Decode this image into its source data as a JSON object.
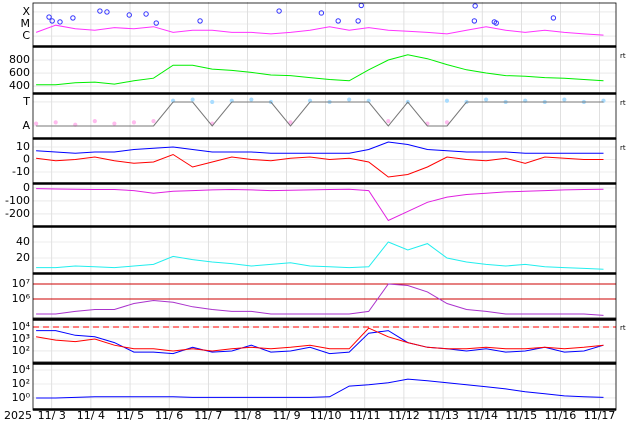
{
  "x_axis": {
    "year": "2025",
    "xlim": [
      2.52,
      17.42
    ],
    "xticks": [
      {
        "value": 3,
        "label": "11/ 3"
      },
      {
        "value": 4,
        "label": "11/ 4"
      },
      {
        "value": 5,
        "label": "11/ 5"
      },
      {
        "value": 6,
        "label": "11/ 6"
      },
      {
        "value": 7,
        "label": "11/ 7"
      },
      {
        "value": 8,
        "label": "11/ 8"
      },
      {
        "value": 9,
        "label": "11/ 9"
      },
      {
        "value": 10,
        "label": "11/10"
      },
      {
        "value": 11,
        "label": "11/11"
      },
      {
        "value": 12,
        "label": "11/12"
      },
      {
        "value": 13,
        "label": "11/13"
      },
      {
        "value": 14,
        "label": "11/14"
      },
      {
        "value": 15,
        "label": "11/15"
      },
      {
        "value": 16,
        "label": "11/16"
      },
      {
        "value": 17,
        "label": "11/17"
      }
    ]
  },
  "chart_data": [
    {
      "type": "line",
      "log": true,
      "ylim": [
        1.8e-07,
        0.00038
      ],
      "yticks": [
        {
          "value": 0.0001,
          "label": "X"
        },
        {
          "value": 1e-05,
          "label": "M"
        },
        {
          "value": 1e-06,
          "label": "C"
        }
      ],
      "x": [
        2.6,
        3.1,
        3.6,
        4.1,
        4.6,
        5.1,
        5.6,
        6.1,
        6.6,
        7.1,
        7.6,
        8.1,
        8.6,
        9.1,
        9.6,
        10.1,
        10.6,
        11.1,
        11.6,
        12.1,
        12.6,
        13.1,
        13.6,
        14.1,
        14.6,
        15.1,
        15.6,
        16.1,
        16.6,
        17.1
      ],
      "series": [
        {
          "color": "#ff33ff",
          "values": [
            2e-06,
            8e-06,
            4e-06,
            3e-06,
            5e-06,
            4e-06,
            6e-06,
            2e-06,
            3e-06,
            3e-06,
            2e-06,
            2e-06,
            1.5e-06,
            2e-06,
            3e-06,
            6e-06,
            3e-06,
            5e-06,
            3e-06,
            2.5e-06,
            2e-06,
            1.5e-06,
            3e-06,
            6e-06,
            3e-06,
            2e-06,
            3e-06,
            2e-06,
            1.5e-06,
            1.2e-06
          ]
        },
        {
          "color": "#3333ff",
          "mode": "markers",
          "x": [
            2.93,
            3.01,
            3.21,
            3.54,
            4.23,
            4.41,
            4.98,
            5.41,
            5.67,
            6.79,
            8.81,
            9.89,
            10.32,
            10.83,
            10.91,
            13.82,
            13.8,
            14.31,
            14.36,
            15.82
          ],
          "values": [
            3.8e-05,
            1.8e-05,
            1.5e-05,
            3.2e-05,
            0.00012,
            0.0001,
            5.6e-05,
            6.8e-05,
            1.2e-05,
            1.8e-05,
            0.00012,
            8.3e-05,
            1.8e-05,
            1.8e-05,
            0.00035,
            0.00032,
            1.8e-05,
            1.5e-05,
            1.2e-05,
            3.2e-05
          ]
        }
      ]
    },
    {
      "type": "line",
      "ylim": [
        308,
        985
      ],
      "yticks": [
        800,
        600,
        400
      ],
      "note": "rt",
      "x": [
        2.6,
        3.1,
        3.6,
        4.1,
        4.6,
        5.1,
        5.6,
        6.1,
        6.6,
        7.1,
        7.6,
        8.1,
        8.6,
        9.1,
        9.6,
        10.1,
        10.6,
        11.1,
        11.6,
        12.1,
        12.6,
        13.1,
        13.6,
        14.1,
        14.6,
        15.1,
        15.6,
        16.1,
        16.6,
        17.1
      ],
      "series": [
        {
          "color": "#00ee00",
          "values": [
            420,
            420,
            450,
            460,
            430,
            480,
            520,
            720,
            720,
            660,
            640,
            610,
            570,
            560,
            530,
            500,
            480,
            650,
            800,
            880,
            820,
            730,
            650,
            600,
            560,
            550,
            530,
            520,
            500,
            480
          ]
        }
      ]
    },
    {
      "type": "line",
      "ylim": [
        -0.46,
        1.29
      ],
      "yticks": [
        {
          "value": 1,
          "label": "T"
        },
        {
          "value": 0,
          "label": "A"
        }
      ],
      "note": "rt",
      "x": [
        2.6,
        3.1,
        3.6,
        4.1,
        4.6,
        5.1,
        5.6,
        6.1,
        6.6,
        7.1,
        7.6,
        8.1,
        8.6,
        9.1,
        9.6,
        10.1,
        10.6,
        11.1,
        11.6,
        12.1,
        12.6,
        13.1,
        13.6,
        14.1,
        14.6,
        15.1,
        15.6,
        16.1,
        16.6,
        17.1
      ],
      "series": [
        {
          "color": "#aaddff",
          "mode": "markers",
          "values": [
            null,
            null,
            null,
            null,
            null,
            null,
            null,
            1.05,
            1.1,
            1.0,
            1.05,
            1.1,
            1.0,
            null,
            1.05,
            1.0,
            1.1,
            1.05,
            null,
            1.0,
            null,
            1.05,
            1.0,
            1.1,
            1.0,
            1.05,
            1.0,
            1.1,
            1.0,
            1.05
          ]
        },
        {
          "color": "#ffbbee",
          "mode": "markers",
          "values": [
            0.1,
            0.15,
            0.05,
            0.2,
            0.1,
            0.15,
            0.2,
            null,
            null,
            0.1,
            null,
            null,
            null,
            0.15,
            null,
            null,
            null,
            null,
            0.2,
            null,
            0.1,
            0.15,
            null,
            null,
            null,
            null,
            null,
            null,
            null,
            null
          ]
        },
        {
          "color": "#777777",
          "values": [
            0,
            0,
            0,
            0,
            0,
            0,
            0,
            1,
            1,
            0,
            1,
            1,
            1,
            0,
            1,
            1,
            1,
            1,
            0,
            1,
            0,
            0,
            1,
            1,
            1,
            1,
            1,
            1,
            1,
            1
          ]
        }
      ]
    },
    {
      "type": "line",
      "ylim": [
        -18,
        15.6
      ],
      "yticks": [
        10,
        0,
        -10
      ],
      "note": "rt",
      "x": [
        2.6,
        3.1,
        3.6,
        4.1,
        4.6,
        5.1,
        5.6,
        6.1,
        6.6,
        7.1,
        7.6,
        8.1,
        8.6,
        9.1,
        9.6,
        10.1,
        10.6,
        11.1,
        11.6,
        12.1,
        12.6,
        13.1,
        13.6,
        14.1,
        14.6,
        15.1,
        15.6,
        16.1,
        16.6,
        17.1
      ],
      "series": [
        {
          "color": "#0000ff",
          "values": [
            7,
            6,
            5,
            6,
            6,
            8,
            9,
            10,
            8,
            6,
            6,
            6,
            5,
            5,
            5,
            5,
            5,
            8,
            14,
            12,
            8,
            7,
            6,
            6,
            6,
            5,
            5,
            5,
            5,
            5
          ]
        },
        {
          "color": "#ff0000",
          "values": [
            1,
            -1,
            0,
            2,
            -1,
            -3,
            -2,
            4,
            -6,
            -2,
            2,
            0,
            -1,
            1,
            2,
            0,
            1,
            -2,
            -14,
            -12,
            -6,
            2,
            0,
            -1,
            1,
            -3,
            2,
            1,
            0,
            0
          ]
        }
      ]
    },
    {
      "type": "line",
      "ylim": [
        -285,
        23
      ],
      "yticks": [
        0,
        -100,
        -200
      ],
      "x": [
        2.6,
        3.1,
        3.6,
        4.1,
        4.6,
        5.1,
        5.6,
        6.1,
        6.6,
        7.1,
        7.6,
        8.1,
        8.6,
        9.1,
        9.6,
        10.1,
        10.6,
        11.1,
        11.6,
        12.1,
        12.6,
        13.1,
        13.6,
        14.1,
        14.6,
        15.1,
        15.6,
        16.1,
        16.6,
        17.1
      ],
      "series": [
        {
          "color": "#e020e0",
          "values": [
            -5,
            -8,
            -10,
            -12,
            -12,
            -20,
            -40,
            -25,
            -20,
            -15,
            -12,
            -15,
            -20,
            -18,
            -15,
            -12,
            -10,
            -20,
            -250,
            -180,
            -110,
            -70,
            -50,
            -40,
            -30,
            -25,
            -20,
            -15,
            -12,
            -10
          ]
        }
      ]
    },
    {
      "type": "line",
      "ylim": [
        2.5,
        57.5
      ],
      "yticks": [
        40,
        20
      ],
      "x": [
        2.6,
        3.1,
        3.6,
        4.1,
        4.6,
        5.1,
        5.6,
        6.1,
        6.6,
        7.1,
        7.6,
        8.1,
        8.6,
        9.1,
        9.6,
        10.1,
        10.6,
        11.1,
        11.6,
        12.1,
        12.6,
        13.1,
        13.6,
        14.1,
        14.6,
        15.1,
        15.6,
        16.1,
        16.6,
        17.1
      ],
      "series": [
        {
          "color": "#22eeee",
          "values": [
            8,
            8,
            10,
            9,
            8,
            10,
            12,
            22,
            18,
            15,
            13,
            10,
            12,
            14,
            10,
            9,
            8,
            9,
            40,
            30,
            38,
            20,
            15,
            12,
            10,
            12,
            9,
            8,
            7,
            6
          ]
        }
      ]
    },
    {
      "type": "line",
      "log": true,
      "ylim": [
        54000,
        40000000
      ],
      "yticks": [
        {
          "value": 10000000,
          "label": "10⁷"
        },
        {
          "value": 1000000,
          "label": "10⁶"
        }
      ],
      "thresholds": [
        {
          "value": 10000000,
          "color": "#cc0000"
        },
        {
          "value": 1000000,
          "color": "#cc0000"
        }
      ],
      "x": [
        2.6,
        3.1,
        3.6,
        4.1,
        4.6,
        5.1,
        5.6,
        6.1,
        6.6,
        7.1,
        7.6,
        8.1,
        8.6,
        9.1,
        9.6,
        10.1,
        10.6,
        11.1,
        11.6,
        12.1,
        12.6,
        13.1,
        13.6,
        14.1,
        14.6,
        15.1,
        15.6,
        16.1,
        16.6,
        17.1
      ],
      "series": [
        {
          "color": "#aa33cc",
          "values": [
            100000,
            100000,
            150000,
            200000,
            200000,
            500000,
            800000,
            600000,
            300000,
            200000,
            150000,
            150000,
            100000,
            100000,
            100000,
            100000,
            100000,
            150000,
            10000000,
            8000000,
            3000000,
            500000,
            200000,
            150000,
            100000,
            100000,
            100000,
            100000,
            100000,
            80000
          ]
        }
      ]
    },
    {
      "type": "line",
      "log": true,
      "ylim": [
        12,
        38000
      ],
      "note": "rt",
      "yticks": [
        {
          "value": 10000,
          "label": "10⁴"
        },
        {
          "value": 1000,
          "label": "10³"
        },
        {
          "value": 100,
          "label": "10²"
        }
      ],
      "thresholds": [
        {
          "value": 10000,
          "color": "#ff0000",
          "dashed": true
        }
      ],
      "x": [
        2.6,
        3.1,
        3.6,
        4.1,
        4.6,
        5.1,
        5.6,
        6.1,
        6.6,
        7.1,
        7.6,
        8.1,
        8.6,
        9.1,
        9.6,
        10.1,
        10.6,
        11.1,
        11.6,
        12.1,
        12.6,
        13.1,
        13.6,
        14.1,
        14.6,
        15.1,
        15.6,
        16.1,
        16.6,
        17.1
      ],
      "series": [
        {
          "color": "#0000ff",
          "values": [
            5000,
            5000,
            2000,
            1500,
            500,
            80,
            80,
            60,
            200,
            80,
            100,
            300,
            80,
            100,
            200,
            60,
            80,
            3000,
            5000,
            500,
            200,
            150,
            100,
            150,
            80,
            100,
            200,
            80,
            100,
            300
          ]
        },
        {
          "color": "#ff0000",
          "values": [
            1500,
            800,
            600,
            1000,
            300,
            150,
            150,
            100,
            150,
            100,
            150,
            200,
            150,
            200,
            300,
            150,
            150,
            8000,
            1500,
            500,
            200,
            150,
            150,
            200,
            150,
            150,
            200,
            150,
            200,
            300
          ]
        }
      ]
    },
    {
      "type": "line",
      "log": true,
      "ylim": [
        0.037,
        72000
      ],
      "yticks": [
        {
          "value": 10000,
          "label": "10⁴"
        },
        {
          "value": 100,
          "label": "10²"
        },
        {
          "value": 1,
          "label": "10⁰"
        }
      ],
      "x": [
        2.6,
        3.1,
        3.6,
        4.1,
        4.6,
        5.1,
        5.6,
        6.1,
        6.6,
        7.1,
        7.6,
        8.1,
        8.6,
        9.1,
        9.6,
        10.1,
        10.6,
        11.1,
        11.6,
        12.1,
        12.6,
        13.1,
        13.6,
        14.1,
        14.6,
        15.1,
        15.6,
        16.1,
        16.6,
        17.1
      ],
      "series": [
        {
          "color": "#0000ff",
          "values": [
            1,
            1,
            1.2,
            1.5,
            1.5,
            1.5,
            1.5,
            1.5,
            1.2,
            1.2,
            1.2,
            1.2,
            1.2,
            1.2,
            1.2,
            1.5,
            50,
            80,
            150,
            500,
            300,
            150,
            80,
            40,
            20,
            8,
            4,
            2,
            1.5,
            1.2
          ]
        }
      ]
    }
  ]
}
